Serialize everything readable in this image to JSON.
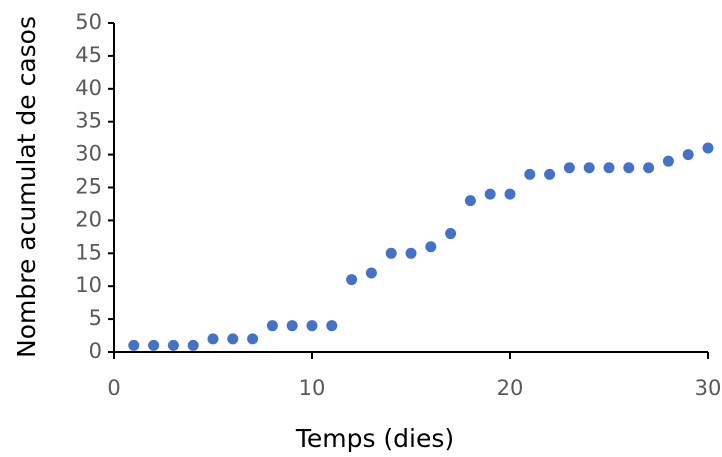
{
  "chart_data": {
    "type": "scatter",
    "xlabel": "Temps (dies)",
    "ylabel": "Nombre acumulat de casos",
    "x": [
      1,
      2,
      3,
      4,
      5,
      6,
      7,
      8,
      9,
      10,
      11,
      12,
      13,
      14,
      15,
      16,
      17,
      18,
      19,
      20,
      21,
      22,
      23,
      24,
      25,
      26,
      27,
      28,
      29,
      30
    ],
    "values": [
      1,
      1,
      1,
      1,
      2,
      2,
      2,
      4,
      4,
      4,
      4,
      11,
      12,
      15,
      15,
      16,
      18,
      23,
      24,
      24,
      27,
      27,
      28,
      28,
      28,
      28,
      28,
      29,
      30,
      31
    ],
    "color": "#4472c4",
    "xlim": [
      0,
      30
    ],
    "xticks": [
      0,
      10,
      20,
      30
    ],
    "ylim": [
      0,
      50
    ],
    "yticks": [
      0,
      5,
      10,
      15,
      20,
      25,
      30,
      35,
      40,
      45,
      50
    ],
    "grid": false
  }
}
